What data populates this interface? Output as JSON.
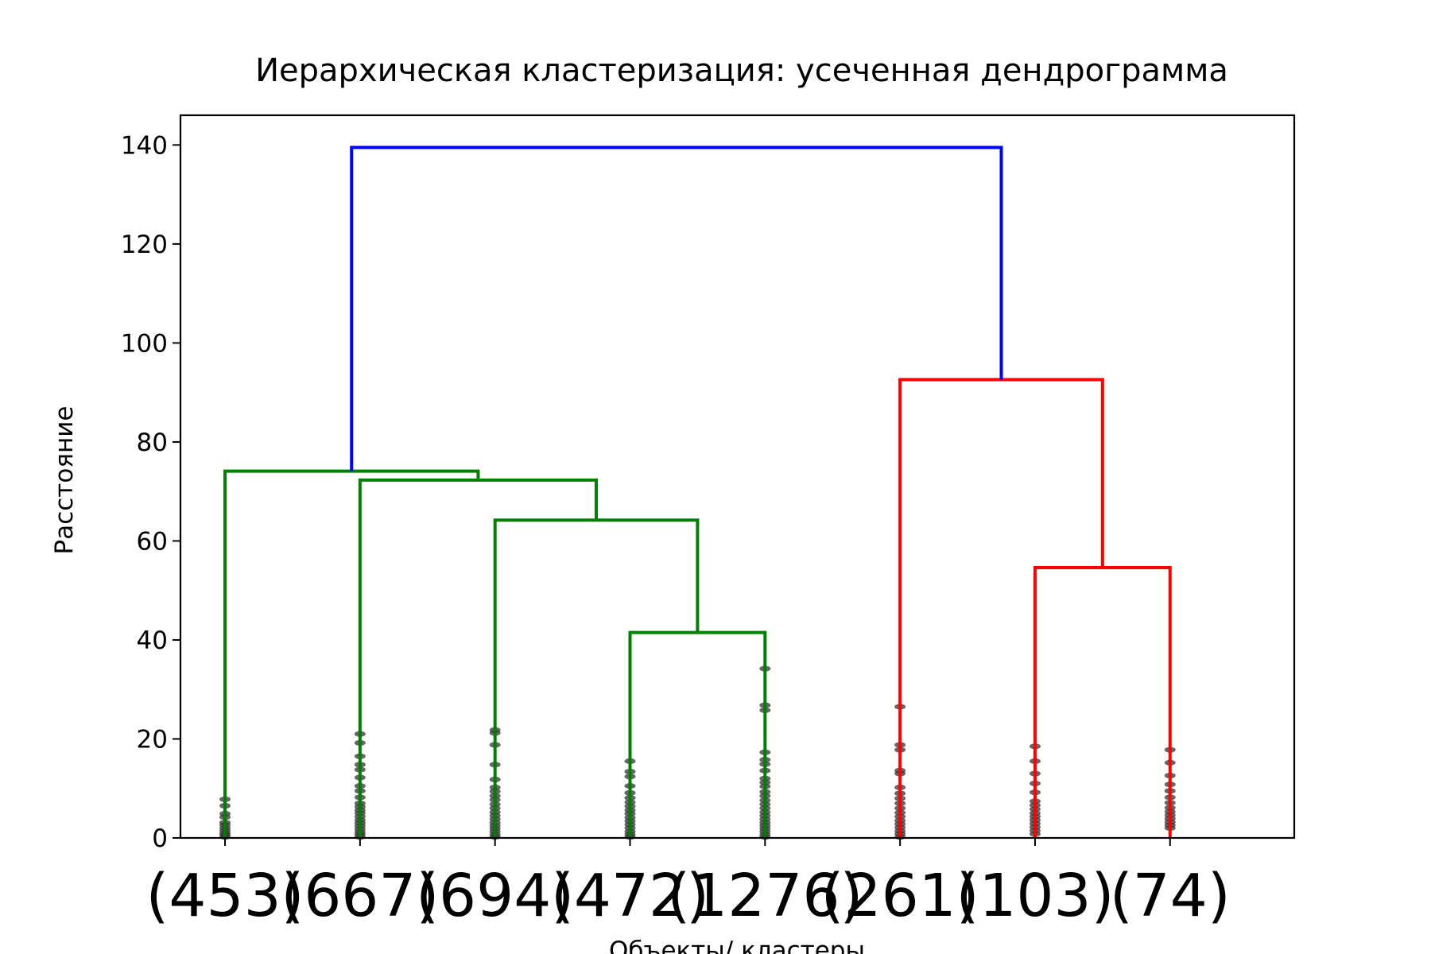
{
  "chart_data": {
    "type": "dendrogram",
    "title": "Иерархическая кластеризация: усеченная дендрограмма",
    "xlabel": "Объекты/ кластеры",
    "ylabel": "Расстояние",
    "ylim": [
      0,
      146
    ],
    "yticks": [
      0,
      20,
      40,
      60,
      80,
      100,
      120,
      140
    ],
    "leaves": [
      "(453)",
      "(667)",
      "(694)",
      "(472)",
      "(1276)",
      "(261)",
      "(103)",
      "(74)"
    ],
    "colors": {
      "green": "#008000",
      "red": "#ff0000",
      "blue": "#0000ff",
      "dots": "#333333"
    },
    "links": [
      {
        "left": [
          4,
          0
        ],
        "right": [
          5,
          0
        ],
        "height": 41.5,
        "color": "green"
      },
      {
        "left": [
          3,
          0
        ],
        "right": [
          4.5,
          41.5
        ],
        "height": 64.2,
        "color": "green"
      },
      {
        "left": [
          2,
          0
        ],
        "right": [
          3.75,
          64.2
        ],
        "height": 72.3,
        "color": "green"
      },
      {
        "left": [
          1,
          0
        ],
        "right": [
          2.875,
          72.3
        ],
        "height": 74.1,
        "color": "green"
      },
      {
        "left": [
          7,
          0
        ],
        "right": [
          8,
          0
        ],
        "height": 54.6,
        "color": "red"
      },
      {
        "left": [
          6,
          0
        ],
        "right": [
          7.5,
          54.6
        ],
        "height": 92.6,
        "color": "red"
      },
      {
        "left": [
          1.9375,
          74.1
        ],
        "right": [
          6.75,
          92.6
        ],
        "height": 139.5,
        "color": "blue"
      }
    ],
    "leaf_dots": [
      [
        0.2,
        0.6,
        1.0,
        1.5,
        2.0,
        2.6,
        3.1,
        4.2,
        4.9,
        6.5,
        7.8
      ],
      [
        0.2,
        0.7,
        1.2,
        1.8,
        2.4,
        3.0,
        3.6,
        4.3,
        5.0,
        5.6,
        6.3,
        7.0,
        8.2,
        9.5,
        10.5,
        12.2,
        13.8,
        14.8,
        16.5,
        19.2,
        21.0
      ],
      [
        0.2,
        0.7,
        1.3,
        1.9,
        2.5,
        3.1,
        3.8,
        4.5,
        5.2,
        6.0,
        6.8,
        7.7,
        8.5,
        9.4,
        10.2,
        11.8,
        14.8,
        18.8,
        21.2,
        21.8
      ],
      [
        0.2,
        0.7,
        1.3,
        2.0,
        2.7,
        3.4,
        4.1,
        4.9,
        5.6,
        6.4,
        7.2,
        8.1,
        9.1,
        10.5,
        12.4,
        13.4,
        15.5
      ],
      [
        0.2,
        0.7,
        1.3,
        1.9,
        2.5,
        3.1,
        3.8,
        4.5,
        5.2,
        6.0,
        6.8,
        7.6,
        8.5,
        9.3,
        10.4,
        11.2,
        12.0,
        13.6,
        14.9,
        15.8,
        17.3,
        25.8,
        26.8,
        34.2
      ],
      [
        0.2,
        0.8,
        1.4,
        2.1,
        2.8,
        3.5,
        4.3,
        5.1,
        6.0,
        7.0,
        8.0,
        9.0,
        10.2,
        13.0,
        13.6,
        17.8,
        18.8,
        26.5
      ],
      [
        0.8,
        1.5,
        2.2,
        2.9,
        3.6,
        4.3,
        5.0,
        5.8,
        6.6,
        7.4,
        9.2,
        11.0,
        13.0,
        15.5,
        18.5
      ],
      [
        2.0,
        2.6,
        3.2,
        3.9,
        4.6,
        5.3,
        6.1,
        7.1,
        8.2,
        9.5,
        10.8,
        12.6,
        15.2,
        17.8
      ]
    ]
  }
}
